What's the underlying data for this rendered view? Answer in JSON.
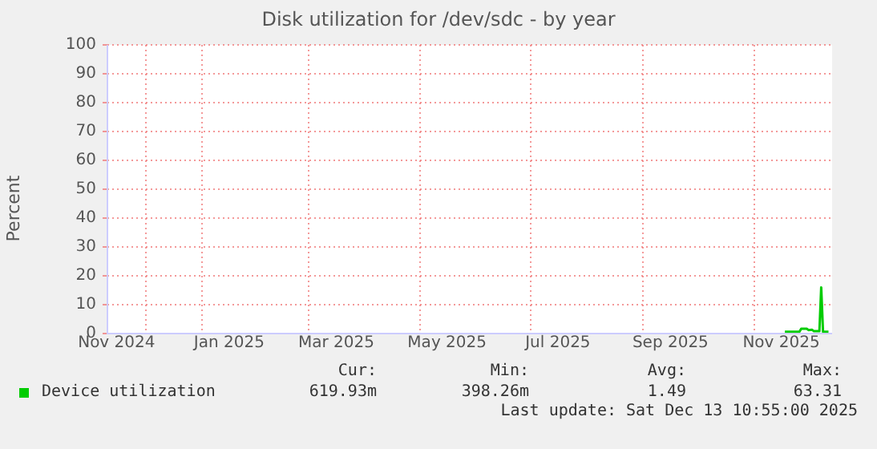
{
  "chart_data": {
    "type": "line",
    "title": "Disk utilization for /dev/sdc - by year",
    "ylabel": "Percent",
    "x": [
      "2025-11-18",
      "2025-11-26",
      "2025-11-27",
      "2025-11-30",
      "2025-12-01",
      "2025-12-03",
      "2025-12-04",
      "2025-12-07",
      "2025-12-08",
      "2025-12-09",
      "2025-12-12"
    ],
    "series": [
      {
        "name": "Device utilization",
        "color": "#00cc00",
        "values": [
          0.6,
          0.6,
          1.7,
          1.7,
          1.2,
          1.3,
          0.8,
          0.8,
          16,
          0.6,
          0.6
        ]
      }
    ],
    "xlim": [
      "2024-11-10",
      "2025-12-14"
    ],
    "xticks": [
      {
        "value": "2024-11-15",
        "label": "Nov 2024"
      },
      {
        "value": "2024-12-01",
        "label": null
      },
      {
        "value": "2025-01-01",
        "label": null
      },
      {
        "value": "2025-01-16",
        "label": "Jan 2025"
      },
      {
        "value": "2025-03-01",
        "label": null
      },
      {
        "value": "2025-03-16",
        "label": "Mar 2025"
      },
      {
        "value": "2025-05-01",
        "label": null
      },
      {
        "value": "2025-05-16",
        "label": "May 2025"
      },
      {
        "value": "2025-07-01",
        "label": null
      },
      {
        "value": "2025-07-16",
        "label": "Jul 2025"
      },
      {
        "value": "2025-09-01",
        "label": null
      },
      {
        "value": "2025-09-16",
        "label": "Sep 2025"
      },
      {
        "value": "2025-11-01",
        "label": null
      },
      {
        "value": "2025-11-16",
        "label": "Nov 2025"
      }
    ],
    "ylim": [
      0,
      100
    ],
    "yticks": [
      0,
      10,
      20,
      30,
      40,
      50,
      60,
      70,
      80,
      90,
      100
    ],
    "grid": true,
    "legend": "bottom left",
    "marker": "none",
    "line_style": "solid",
    "annotations": [
      "Cur:",
      "Min:",
      "Avg:",
      "Max:",
      "619.93m",
      "398.26m",
      "1.49",
      "63.31",
      "Last update: Sat Dec 13 10:55:00 2025"
    ]
  }
}
